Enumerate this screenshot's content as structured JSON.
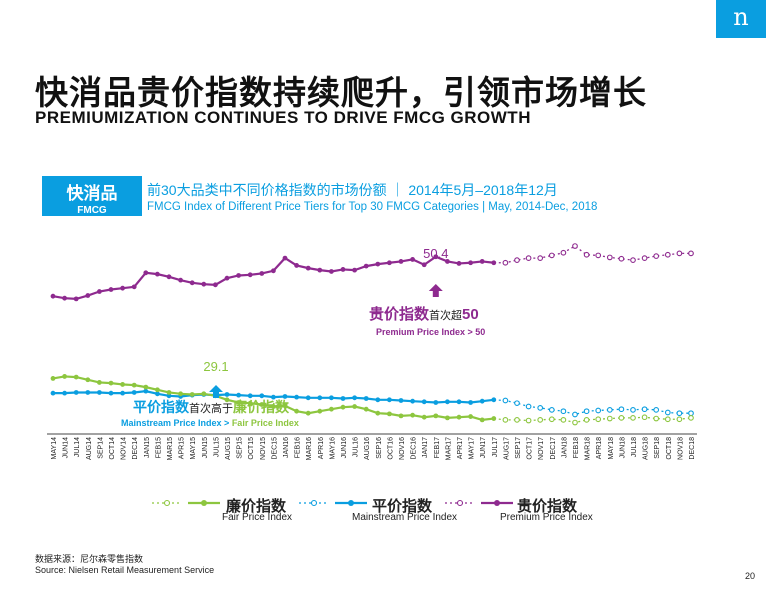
{
  "logo": {
    "letter": "n"
  },
  "title": {
    "cn": "快消品贵价指数持续爬升，引领市场增长",
    "en": "PREMIUMIZATION CONTINUES TO DRIVE FMCG GROWTH"
  },
  "badge": {
    "cn": "快消品",
    "en": "FMCG"
  },
  "subtitle": {
    "cn": "前30大品类中不同价格指数的市场份额 ｜ 2014年5月–2018年12月",
    "en": "FMCG Index of Different Price Tiers for Top 30 FMCG Categories | May, 2014-Dec, 2018"
  },
  "colors": {
    "fair": "#8dc63f",
    "mainstream": "#0a9ee0",
    "premium": "#8e2a8f",
    "accent": "#0a9ee0"
  },
  "chart_data": {
    "type": "line",
    "title": "FMCG Index of Different Price Tiers for Top 30 FMCG Categories | May, 2014-Dec, 2018",
    "categories": [
      "MAY14",
      "JUN14",
      "JUL14",
      "AUG14",
      "SEP14",
      "OCT14",
      "NOV14",
      "DEC14",
      "JAN15",
      "FEB15",
      "MAR15",
      "APR15",
      "MAY15",
      "JUN15",
      "JUL15",
      "AUG15",
      "SEP15",
      "OCT15",
      "NOV15",
      "DEC15",
      "JAN16",
      "FEB16",
      "MAR16",
      "APR16",
      "MAY16",
      "JUN16",
      "JUL16",
      "AUG16",
      "SEP16",
      "OCT16",
      "NOV16",
      "DEC16",
      "JAN17",
      "FEB17",
      "MAR17",
      "APR17",
      "MAY17",
      "JUN17",
      "JUL17",
      "AUG17",
      "SEP17",
      "OCT17",
      "NOV17",
      "DEC17",
      "JAN18",
      "FEB18",
      "MAR18",
      "APR18",
      "MAY18",
      "JUN18",
      "JUL18",
      "AUG18",
      "SEP18",
      "OCT18",
      "NOV18",
      "DEC18"
    ],
    "actual_last_index": 38,
    "ylim": [
      20,
      55
    ],
    "series": [
      {
        "name": "Premium Price Index",
        "key": "premium",
        "values": [
          44.5,
          44.2,
          44.1,
          44.6,
          45.2,
          45.5,
          45.7,
          45.9,
          48.0,
          47.8,
          47.4,
          46.9,
          46.5,
          46.3,
          46.2,
          47.2,
          47.6,
          47.7,
          47.9,
          48.3,
          50.2,
          49.1,
          48.7,
          48.4,
          48.2,
          48.5,
          48.4,
          49.0,
          49.3,
          49.5,
          49.7,
          50.0,
          49.2,
          50.4,
          49.7,
          49.4,
          49.5,
          49.7,
          49.5,
          49.5,
          49.9,
          50.2,
          50.2,
          50.6,
          51.0,
          52.0,
          50.7,
          50.6,
          50.3,
          50.1,
          49.9,
          50.2,
          50.5,
          50.7,
          50.9,
          50.9
        ]
      },
      {
        "name": "Mainstream Price Index",
        "key": "mainstream",
        "values": [
          30.0,
          30.0,
          30.1,
          30.1,
          30.1,
          30.0,
          30.0,
          30.1,
          30.3,
          29.9,
          29.6,
          29.5,
          29.7,
          29.8,
          29.7,
          29.8,
          29.7,
          29.6,
          29.6,
          29.4,
          29.5,
          29.4,
          29.3,
          29.3,
          29.3,
          29.2,
          29.3,
          29.2,
          29.0,
          29.0,
          28.9,
          28.8,
          28.7,
          28.6,
          28.7,
          28.7,
          28.6,
          28.8,
          29.0,
          28.9,
          28.5,
          28.0,
          27.8,
          27.5,
          27.3,
          26.8,
          27.3,
          27.4,
          27.5,
          27.6,
          27.5,
          27.6,
          27.5,
          27.1,
          27.0,
          27.0
        ]
      },
      {
        "name": "Fair Price Index",
        "key": "fair",
        "values": [
          32.2,
          32.5,
          32.4,
          32.0,
          31.6,
          31.5,
          31.3,
          31.2,
          30.9,
          30.5,
          30.1,
          29.9,
          29.8,
          29.9,
          29.6,
          29.0,
          28.6,
          28.5,
          28.3,
          28.0,
          28.1,
          27.3,
          27.0,
          27.3,
          27.6,
          27.9,
          28.0,
          27.6,
          27.0,
          26.9,
          26.6,
          26.7,
          26.4,
          26.6,
          26.3,
          26.4,
          26.5,
          26.0,
          26.2,
          26.0,
          26.0,
          25.9,
          26.0,
          26.1,
          26.0,
          25.6,
          26.0,
          26.1,
          26.2,
          26.3,
          26.3,
          26.4,
          26.2,
          26.1,
          26.1,
          26.3
        ]
      }
    ],
    "annotations": {
      "peak_value": "50.4",
      "premium_cn_main": "贵价指数",
      "premium_cn_small": "首次超",
      "premium_cn_num": "50",
      "premium_en": "Premium Price Index > 50",
      "cross_value": "29.1",
      "mainstream_cn_main": "平价指数",
      "mainstream_cn_small": "首次高于",
      "fair_cn_main": "廉价指数",
      "cross_en_main": "Mainstream Price Index > ",
      "cross_en_fair": "Fair Price Index"
    }
  },
  "legend": [
    {
      "key": "fair",
      "cn": "廉价指数",
      "en": "Fair Price Index"
    },
    {
      "key": "mainstream",
      "cn": "平价指数",
      "en": "Mainstream Price Index"
    },
    {
      "key": "premium",
      "cn": "贵价指数",
      "en": "Premium Price Index"
    }
  ],
  "source": {
    "cn": "数据来源：尼尔森零售指数",
    "en": "Source: Nielsen Retail Measurement Service"
  },
  "page_number": "20"
}
